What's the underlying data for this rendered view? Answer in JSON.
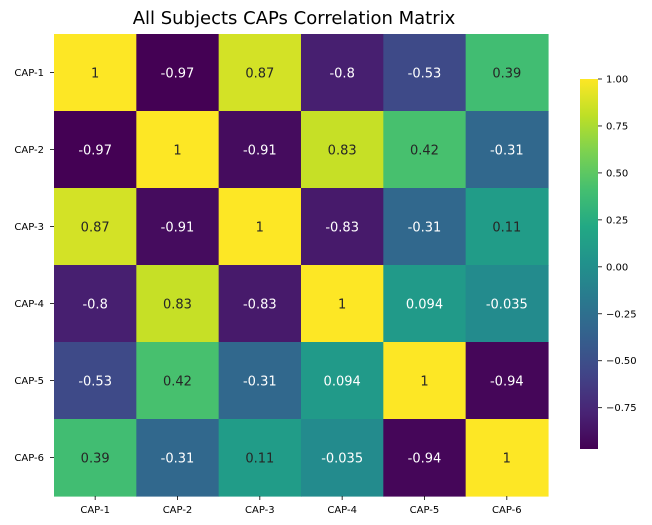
{
  "chart_data": {
    "type": "heatmap",
    "title": "All Subjects CAPs Correlation Matrix",
    "row_labels": [
      "CAP-1",
      "CAP-2",
      "CAP-3",
      "CAP-4",
      "CAP-5",
      "CAP-6"
    ],
    "col_labels": [
      "CAP-1",
      "CAP-2",
      "CAP-3",
      "CAP-4",
      "CAP-5",
      "CAP-6"
    ],
    "values": [
      [
        1,
        -0.97,
        0.87,
        -0.8,
        -0.53,
        0.39
      ],
      [
        -0.97,
        1,
        -0.91,
        0.83,
        0.42,
        -0.31
      ],
      [
        0.87,
        -0.91,
        1,
        -0.83,
        -0.31,
        0.11
      ],
      [
        -0.8,
        0.83,
        -0.83,
        1,
        0.094,
        -0.035
      ],
      [
        -0.53,
        0.42,
        -0.31,
        0.094,
        1,
        -0.94
      ],
      [
        0.39,
        -0.31,
        0.11,
        -0.035,
        -0.94,
        1
      ]
    ],
    "colormap": "viridis",
    "vmin": -0.97,
    "vmax": 1.0,
    "colorbar_ticks": [
      1.0,
      0.75,
      0.5,
      0.25,
      0.0,
      -0.25,
      -0.5,
      -0.75
    ],
    "colorbar_tick_labels": [
      "1.00",
      "0.75",
      "0.50",
      "0.25",
      "0.00",
      "−0.25",
      "−0.50",
      "−0.75"
    ],
    "annotations": true,
    "legend": "colorbar-right"
  }
}
